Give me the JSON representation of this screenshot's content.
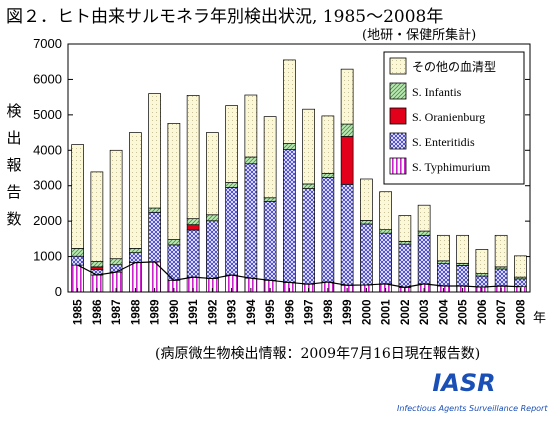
{
  "title": "図２．ヒト由来サルモネラ年別検出状況, 1985～2008年",
  "source_note": "(地研・保健所集計)",
  "footnote": "(病原微生物検出情報：2009年7月16日現在報告数)",
  "logo": {
    "text": "IASR",
    "subtitle": "Infectious Agents Surveillance Report",
    "color": "#1a4fb5"
  },
  "colors": {
    "other": "#fbf8d8",
    "infantis": "#9fd49a",
    "oranienburg": "#e3001b",
    "enteritidis": "#3a3acc",
    "typhimurium": "#cc22cc"
  },
  "chart_data": {
    "type": "bar",
    "stacked": true,
    "ylabel": "検出報告数",
    "x_unit": "年",
    "ylim": [
      0,
      7000
    ],
    "yticks": [
      0,
      1000,
      2000,
      3000,
      4000,
      5000,
      6000,
      7000
    ],
    "categories": [
      "1985",
      "1986",
      "1987",
      "1988",
      "1989",
      "1990",
      "1991",
      "1992",
      "1993",
      "1994",
      "1995",
      "1996",
      "1997",
      "1998",
      "1999",
      "2000",
      "2001",
      "2002",
      "2003",
      "2004",
      "2005",
      "2006",
      "2007",
      "2008"
    ],
    "series": [
      {
        "name": "S. Typhimurium",
        "values": [
          760,
          480,
          560,
          830,
          850,
          330,
          420,
          380,
          480,
          390,
          330,
          270,
          220,
          280,
          190,
          200,
          230,
          130,
          230,
          170,
          170,
          140,
          170,
          150
        ]
      },
      {
        "name": "S. Enteritidis",
        "values": [
          250,
          150,
          210,
          280,
          1400,
          1000,
          1330,
          1630,
          2470,
          3230,
          2230,
          3750,
          2700,
          2950,
          2850,
          1720,
          1430,
          1220,
          1370,
          630,
          580,
          310,
          480,
          220
        ]
      },
      {
        "name": "S. Oranienburg",
        "values": [
          0,
          80,
          0,
          0,
          0,
          0,
          150,
          0,
          0,
          0,
          0,
          0,
          0,
          0,
          1350,
          0,
          0,
          0,
          0,
          0,
          0,
          0,
          0,
          0
        ]
      },
      {
        "name": "S. Infantis",
        "values": [
          220,
          150,
          170,
          120,
          120,
          150,
          170,
          170,
          140,
          190,
          100,
          170,
          130,
          120,
          350,
          100,
          100,
          80,
          120,
          80,
          60,
          70,
          60,
          50
        ]
      },
      {
        "name": "その他の血清型",
        "values": [
          2930,
          2530,
          3060,
          3270,
          3230,
          3280,
          3480,
          2320,
          2170,
          1750,
          2290,
          2360,
          2110,
          1620,
          1550,
          1170,
          1070,
          730,
          730,
          720,
          790,
          680,
          890,
          600
        ]
      }
    ],
    "legend": [
      "その他の血清型",
      "S. Infantis",
      "S. Oranienburg",
      "S. Enteritidis",
      "S. Typhimurium"
    ],
    "line_series": {
      "name": "S. Typhimurium",
      "values": [
        760,
        480,
        560,
        830,
        850,
        330,
        420,
        380,
        480,
        390,
        330,
        270,
        220,
        280,
        190,
        200,
        230,
        130,
        230,
        170,
        170,
        140,
        170,
        150
      ]
    },
    "legend_position": "upper-right",
    "grid": false
  }
}
